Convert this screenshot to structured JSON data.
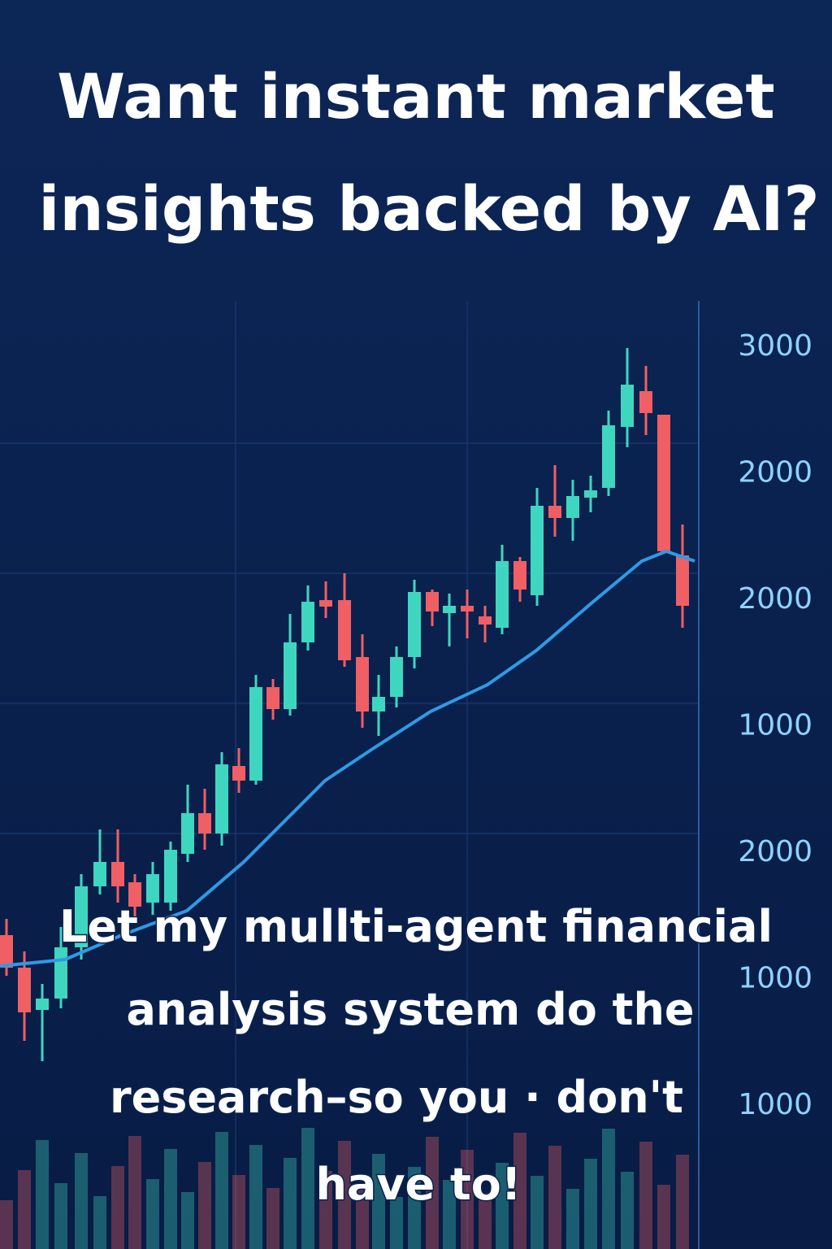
{
  "headline": [
    "Want instant market",
    "insights backed by AI?"
  ],
  "body": [
    "Let my mullti-agent financial",
    "analysis system do the",
    "research–so you  · don't",
    "have to!"
  ],
  "axis_labels": [
    3000,
    2000,
    2000,
    1000,
    2000,
    1000,
    1000
  ]
}
